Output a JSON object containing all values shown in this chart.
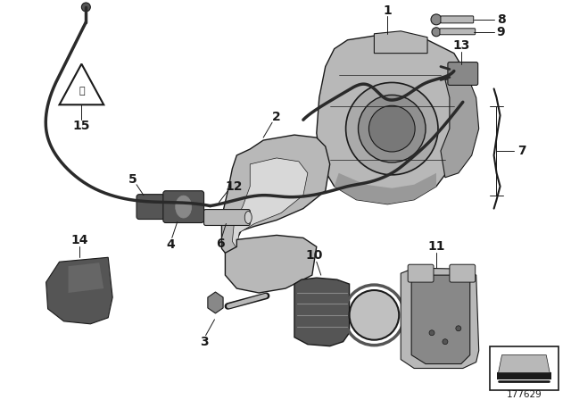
{
  "bg_color": "#ffffff",
  "diagram_id": "177629",
  "gray_light": "#b8b8b8",
  "gray_med": "#888888",
  "gray_dark": "#555555",
  "black": "#1a1a1a",
  "wire_color": "#2a2a2a"
}
